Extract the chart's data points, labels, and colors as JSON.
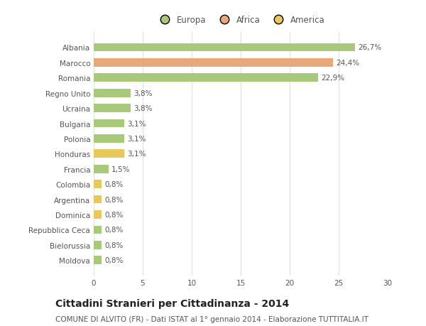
{
  "countries": [
    "Albania",
    "Marocco",
    "Romania",
    "Regno Unito",
    "Ucraina",
    "Bulgaria",
    "Polonia",
    "Honduras",
    "Francia",
    "Colombia",
    "Argentina",
    "Dominica",
    "Repubblica Ceca",
    "Bielorussia",
    "Moldova"
  ],
  "values": [
    26.7,
    24.4,
    22.9,
    3.8,
    3.8,
    3.1,
    3.1,
    3.1,
    1.5,
    0.8,
    0.8,
    0.8,
    0.8,
    0.8,
    0.8
  ],
  "labels": [
    "26,7%",
    "24,4%",
    "22,9%",
    "3,8%",
    "3,8%",
    "3,1%",
    "3,1%",
    "3,1%",
    "1,5%",
    "0,8%",
    "0,8%",
    "0,8%",
    "0,8%",
    "0,8%",
    "0,8%"
  ],
  "continents": [
    "Europa",
    "Africa",
    "Europa",
    "Europa",
    "Europa",
    "Europa",
    "Europa",
    "America",
    "Europa",
    "America",
    "America",
    "America",
    "Europa",
    "Europa",
    "Europa"
  ],
  "colors": {
    "Europa": "#a8c87a",
    "Africa": "#e8a87a",
    "America": "#e8c85a"
  },
  "title": "Cittadini Stranieri per Cittadinanza - 2014",
  "subtitle": "COMUNE DI ALVITO (FR) - Dati ISTAT al 1° gennaio 2014 - Elaborazione TUTTITALIA.IT",
  "xlim": [
    0,
    30
  ],
  "xticks": [
    0,
    5,
    10,
    15,
    20,
    25,
    30
  ],
  "background_color": "#ffffff",
  "grid_color": "#e0e0e0",
  "bar_height": 0.55,
  "title_fontsize": 10,
  "subtitle_fontsize": 7.5,
  "label_fontsize": 7.5,
  "tick_fontsize": 7.5,
  "legend_fontsize": 8.5
}
